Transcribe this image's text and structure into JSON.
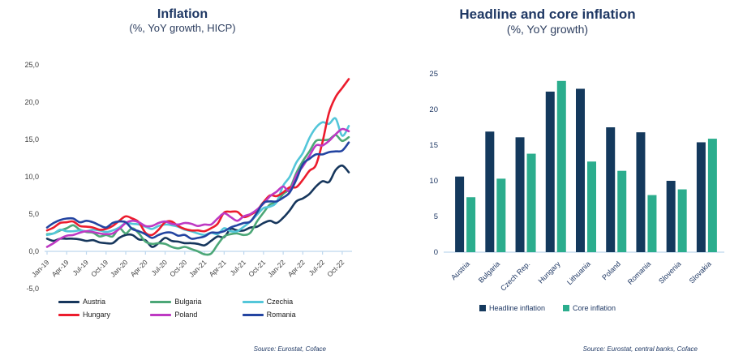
{
  "theme": {
    "background": "#FFFFFF",
    "title_color": "#1F3864",
    "axis_line_color": "#BDD7EE",
    "line_chart_tick_text_color": "#404040",
    "bar_chart_tick_text_color": "#1F3864",
    "legend_text_color_left": "#1A1A1A",
    "legend_text_color_right": "#1F3864",
    "source_text_color": "#1F3864"
  },
  "chart_data": [
    {
      "type": "line",
      "title": "Inflation",
      "subtitle": "(%, YoY growth, HICP)",
      "source": "Source: Eurostat, Coface",
      "x_tick_labels": [
        "Jan-19",
        "Apr-19",
        "Jul-19",
        "Oct-19",
        "Jan-20",
        "Apr-20",
        "Jul-20",
        "Oct-20",
        "Jan-21",
        "Apr-21",
        "Jul-21",
        "Oct-21",
        "Jan-22",
        "Apr-22",
        "Jul-22",
        "Oct-22"
      ],
      "x_tick_every_months": 3,
      "ylim": [
        -5,
        25
      ],
      "y_ticks": [
        25,
        20,
        15,
        10,
        5,
        0,
        -5
      ],
      "y_tick_labels": [
        "25,0",
        "20,0",
        "15,0",
        "10,0",
        "5,0",
        "0,0",
        "-5,0"
      ],
      "grid": false,
      "legend_position": "bottom",
      "series": [
        {
          "name": "Austria",
          "color": "#16365C",
          "values": [
            1.7,
            1.4,
            1.7,
            1.7,
            1.7,
            1.6,
            1.4,
            1.5,
            1.2,
            1.1,
            1.1,
            1.8,
            2.2,
            2.2,
            1.6,
            1.5,
            0.6,
            1.1,
            1.8,
            1.4,
            1.3,
            1.1,
            1.1,
            1.0,
            0.8,
            1.4,
            2.0,
            1.9,
            3.0,
            2.8,
            2.8,
            3.2,
            3.3,
            3.8,
            4.1,
            3.8,
            4.5,
            5.5,
            6.7,
            7.1,
            7.7,
            8.7,
            9.4,
            9.3,
            10.9,
            11.5,
            10.6
          ]
        },
        {
          "name": "Bulgaria",
          "color": "#4CA777",
          "values": [
            2.3,
            2.4,
            2.8,
            3.1,
            3.5,
            2.9,
            2.6,
            2.5,
            2.0,
            2.2,
            2.0,
            3.1,
            2.4,
            3.1,
            2.4,
            1.3,
            1.0,
            1.1,
            1.0,
            0.6,
            0.4,
            0.6,
            0.3,
            0.0,
            -0.4,
            -0.3,
            0.9,
            2.0,
            2.3,
            2.4,
            2.2,
            2.5,
            4.0,
            5.2,
            6.3,
            6.6,
            7.7,
            8.4,
            10.5,
            12.1,
            13.4,
            14.8,
            14.9,
            15.0,
            15.6,
            14.8,
            15.3
          ]
        },
        {
          "name": "Czechia",
          "color": "#53C6D9",
          "values": [
            2.2,
            2.4,
            2.9,
            2.7,
            2.7,
            2.8,
            2.7,
            2.9,
            2.8,
            2.6,
            2.8,
            3.2,
            3.8,
            3.7,
            3.6,
            3.3,
            3.0,
            3.4,
            3.6,
            3.5,
            3.3,
            2.9,
            2.7,
            2.4,
            2.2,
            2.5,
            2.3,
            3.1,
            2.7,
            2.7,
            3.3,
            4.0,
            4.9,
            5.8,
            6.0,
            6.6,
            8.8,
            10.0,
            11.9,
            13.2,
            15.2,
            16.6,
            17.3,
            17.1,
            17.8,
            15.5,
            16.8
          ]
        },
        {
          "name": "Hungary",
          "color": "#EC1C2D",
          "values": [
            2.8,
            3.2,
            3.8,
            3.9,
            4.0,
            3.4,
            3.3,
            3.2,
            2.9,
            3.0,
            3.4,
            4.1,
            4.7,
            4.4,
            3.9,
            2.5,
            2.2,
            2.9,
            3.9,
            4.0,
            3.4,
            3.0,
            2.8,
            2.8,
            2.7,
            3.1,
            3.7,
            5.2,
            5.3,
            5.3,
            4.6,
            4.9,
            5.5,
            6.6,
            7.5,
            7.4,
            7.9,
            8.6,
            8.6,
            9.6,
            10.8,
            11.6,
            14.7,
            18.6,
            20.7,
            21.9,
            23.1
          ]
        },
        {
          "name": "Poland",
          "color": "#BE39C3",
          "values": [
            0.6,
            1.1,
            1.7,
            2.1,
            2.2,
            2.5,
            2.7,
            2.6,
            2.4,
            2.3,
            2.4,
            3.0,
            3.8,
            4.1,
            3.9,
            3.4,
            3.4,
            3.8,
            4.0,
            3.7,
            3.6,
            3.8,
            3.7,
            3.4,
            3.6,
            3.6,
            4.4,
            5.1,
            4.6,
            4.1,
            4.7,
            5.0,
            5.6,
            6.4,
            7.4,
            8.0,
            8.7,
            8.1,
            10.2,
            11.4,
            12.8,
            14.2,
            14.2,
            14.8,
            15.7,
            16.4,
            16.1
          ]
        },
        {
          "name": "Romania",
          "color": "#2344A1",
          "values": [
            3.2,
            3.8,
            4.2,
            4.4,
            4.4,
            3.9,
            4.1,
            3.9,
            3.5,
            3.2,
            3.8,
            4.0,
            3.9,
            3.0,
            2.7,
            2.3,
            1.8,
            2.2,
            2.5,
            2.5,
            2.1,
            2.2,
            1.7,
            1.8,
            2.0,
            2.5,
            2.5,
            2.7,
            3.2,
            3.5,
            3.8,
            4.0,
            5.2,
            6.5,
            6.7,
            6.7,
            7.2,
            7.9,
            9.6,
            11.7,
            12.4,
            13.0,
            13.0,
            13.3,
            13.4,
            13.5,
            14.6
          ]
        }
      ]
    },
    {
      "type": "bar",
      "title": "Headline and core inflation",
      "subtitle": "(%, YoY growth)",
      "source": "Source: Eurostat, central banks, Coface",
      "categories": [
        "Austria",
        "Bulgaria",
        "Czech Rep.",
        "Hungary",
        "Lithuania",
        "Poland",
        "Romania",
        "Slovenia",
        "Slovakia"
      ],
      "ylim": [
        0,
        25
      ],
      "y_ticks": [
        25,
        20,
        15,
        10,
        5,
        0
      ],
      "y_tick_labels": [
        "25",
        "20",
        "15",
        "10",
        "5",
        "0"
      ],
      "grid": false,
      "legend_position": "bottom",
      "series": [
        {
          "name": "Headline inflation",
          "color": "#14395D",
          "values": [
            10.6,
            16.9,
            16.1,
            22.5,
            22.9,
            17.5,
            16.8,
            10.0,
            15.4
          ]
        },
        {
          "name": "Core inflation",
          "color": "#2BAD8D",
          "values": [
            7.7,
            10.3,
            13.8,
            24.0,
            12.7,
            11.4,
            8.0,
            8.8,
            15.9
          ]
        }
      ]
    }
  ]
}
